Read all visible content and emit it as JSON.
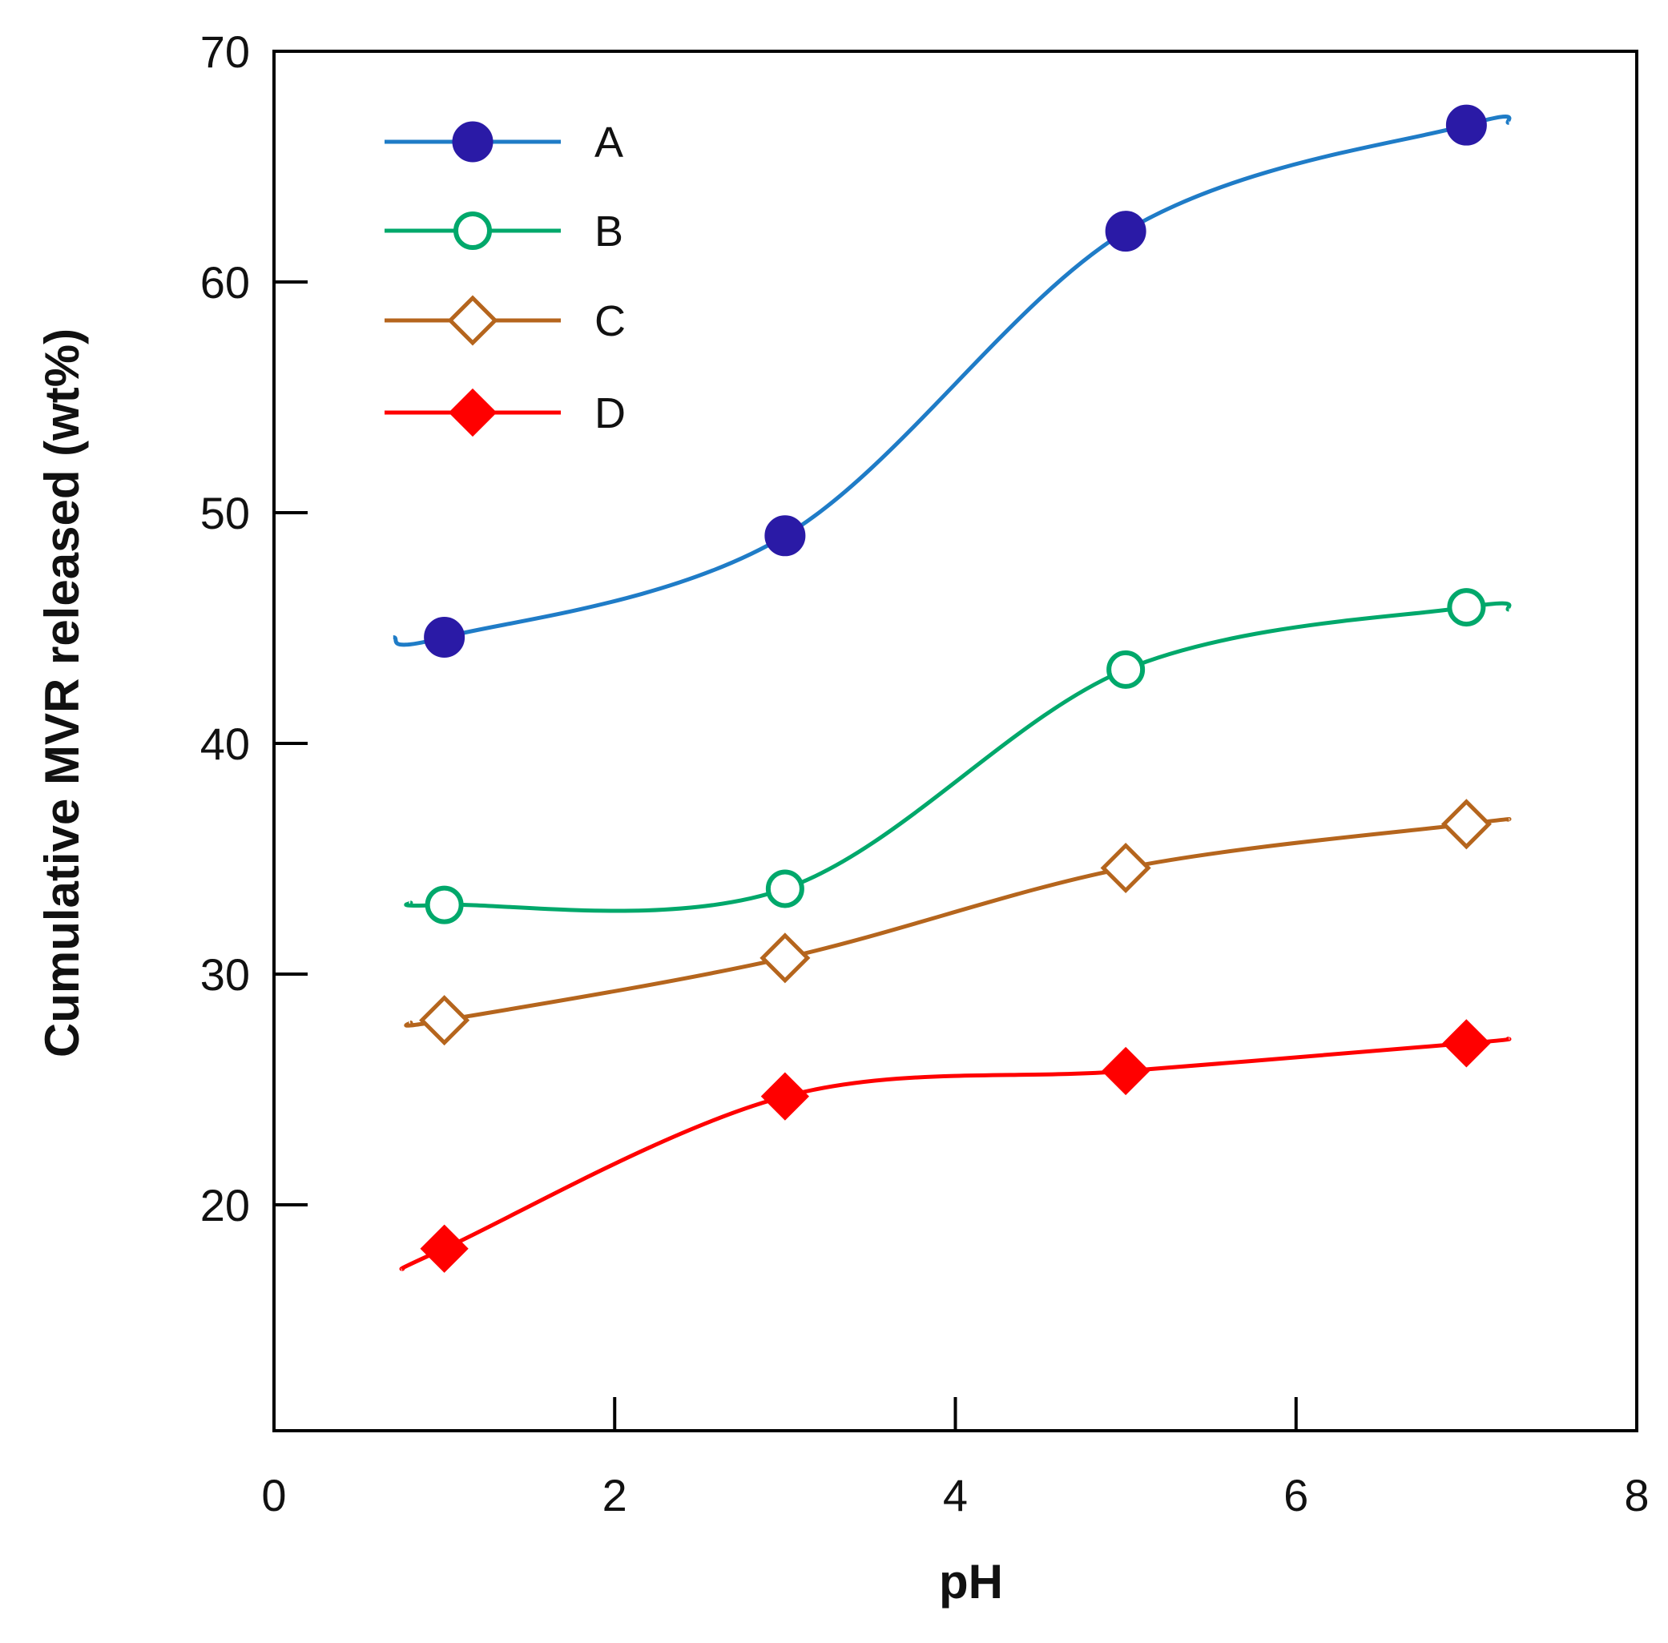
{
  "chart_data": {
    "type": "line",
    "title": "",
    "xlabel": "pH",
    "ylabel": "Cumulative MVR released (wt%)",
    "xlim": [
      0,
      8
    ],
    "ylim": [
      10,
      70
    ],
    "xticks": [
      0,
      2,
      4,
      6,
      8
    ],
    "yticks": [
      20,
      30,
      40,
      50,
      60,
      70
    ],
    "x_tick_labels": [
      "0",
      "2",
      "4",
      "6",
      "8"
    ],
    "y_tick_labels": [
      "20",
      "30",
      "40",
      "50",
      "60",
      "70"
    ],
    "grid": false,
    "legend_position": "top-left",
    "x": [
      1,
      3,
      5,
      7
    ],
    "series": [
      {
        "name": "A",
        "marker": "filled-circle",
        "line_color": "#1f7cc7",
        "marker_color": "#2a1aa6",
        "values": [
          44.6,
          49.0,
          62.2,
          66.8
        ],
        "curve_extent": [
          0.7,
          7.25
        ],
        "curve_end_values": [
          44.6,
          66.9
        ]
      },
      {
        "name": "B",
        "marker": "open-circle",
        "line_color": "#00a86b",
        "marker_color": "#00a86b",
        "values": [
          33.0,
          33.7,
          43.2,
          45.9
        ],
        "curve_extent": [
          0.8,
          7.25
        ],
        "curve_end_values": [
          33.1,
          45.8
        ]
      },
      {
        "name": "C",
        "marker": "open-diamond",
        "line_color": "#b5651d",
        "marker_color": "#b5651d",
        "values": [
          28.0,
          30.7,
          34.6,
          36.5
        ],
        "curve_extent": [
          0.8,
          7.25
        ],
        "curve_end_values": [
          27.9,
          36.7
        ]
      },
      {
        "name": "D",
        "marker": "filled-diamond",
        "line_color": "#ff0000",
        "marker_color": "#ff0000",
        "values": [
          18.1,
          24.7,
          25.8,
          27.0
        ],
        "curve_extent": [
          0.75,
          7.25
        ],
        "curve_end_values": [
          17.2,
          27.2
        ]
      }
    ]
  }
}
